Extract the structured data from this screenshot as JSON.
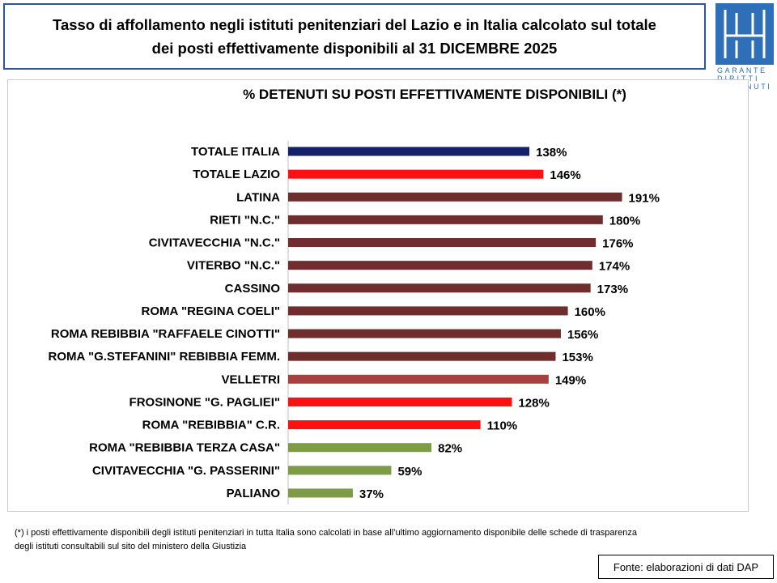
{
  "header": {
    "title_line1": "Tasso di affollamento negli istituti penitenziari del Lazio e in Italia calcolato sul totale",
    "title_line2": "dei posti effettivamente disponibili al 31 DICEMBRE 2025"
  },
  "logo": {
    "line1": "GARANTE",
    "line2": "DIRITTI",
    "line3": "NUTI",
    "color": "#2e6fb7"
  },
  "chart_data": {
    "type": "bar",
    "orientation": "horizontal",
    "title": "% DETENUTI SU POSTI EFFETTIVAMENTE DISPONIBILI (*)",
    "xlabel": "",
    "ylabel": "",
    "xlim": [
      0,
      200
    ],
    "value_suffix": "%",
    "categories": [
      "TOTALE ITALIA",
      "TOTALE LAZIO",
      "LATINA",
      "RIETI \"N.C.\"",
      "CIVITAVECCHIA \"N.C.\"",
      "VITERBO \"N.C.\"",
      "CASSINO",
      "ROMA \"REGINA COELI\"",
      "ROMA REBIBBIA \"RAFFAELE CINOTTI\"",
      "ROMA \"G.STEFANINI\" REBIBBIA FEMM.",
      "VELLETRI",
      "FROSINONE \"G. PAGLIEI\"",
      "ROMA \"REBIBBIA\" C.R.",
      "ROMA \"REBIBBIA TERZA CASA\"",
      "CIVITAVECCHIA \"G. PASSERINI\"",
      "PALIANO"
    ],
    "values": [
      138,
      146,
      191,
      180,
      176,
      174,
      173,
      160,
      156,
      153,
      149,
      128,
      110,
      82,
      59,
      37
    ],
    "colors": [
      "#13216a",
      "#fe1010",
      "#702d2d",
      "#702d2d",
      "#702d2d",
      "#702d2d",
      "#702d2d",
      "#702d2d",
      "#702d2d",
      "#702d2d",
      "#a84040",
      "#fe1010",
      "#fe1010",
      "#7e9b48",
      "#7e9b48",
      "#7e9b48"
    ],
    "grid": false,
    "legend": "none"
  },
  "footnote": {
    "line1": "(*) i posti effettivamente disponibili  degli istituti penitenziari in tutta Italia sono calcolati in base all’ultimo aggiornamento disponibile  delle schede di trasparenza",
    "line2": "degli istituti consultabili sul sito del ministero della Giustizia"
  },
  "source": {
    "label": "Fonte: elaborazioni di dati DAP"
  }
}
